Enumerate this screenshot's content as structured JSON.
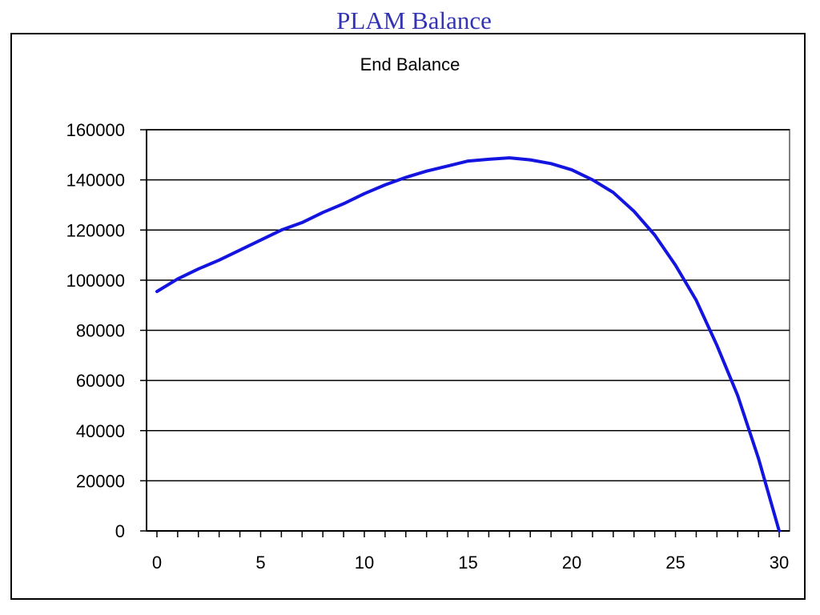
{
  "slide": {
    "title": "PLAM Balance"
  },
  "chart_data": {
    "type": "line",
    "title": "End Balance",
    "xlabel": "",
    "ylabel": "",
    "xlim": [
      -0.5,
      30.5
    ],
    "ylim": [
      0,
      160000
    ],
    "x_ticks": [
      0,
      5,
      10,
      15,
      20,
      25,
      30
    ],
    "y_ticks": [
      0,
      20000,
      40000,
      60000,
      80000,
      100000,
      120000,
      140000,
      160000
    ],
    "grid": "horizontal",
    "legend": "none",
    "colors": {
      "line": "#1414e0",
      "grid": "#000000",
      "plot_border": "#808080",
      "title": "#3333b3"
    },
    "series": [
      {
        "x": [
          0,
          1,
          2,
          3,
          4,
          5,
          6,
          7,
          8,
          9,
          10,
          11,
          12,
          13,
          14,
          15,
          16,
          17,
          18,
          19,
          20,
          21,
          22,
          23,
          24,
          25,
          26,
          27,
          28,
          29,
          30
        ],
        "values": [
          95500,
          100500,
          104500,
          108000,
          112000,
          116000,
          120000,
          123000,
          127000,
          130500,
          134500,
          138000,
          141000,
          143500,
          145500,
          147500,
          148200,
          148800,
          148000,
          146500,
          144000,
          140000,
          135000,
          127500,
          118000,
          106000,
          92000,
          74000,
          54000,
          29000,
          0
        ]
      }
    ]
  }
}
